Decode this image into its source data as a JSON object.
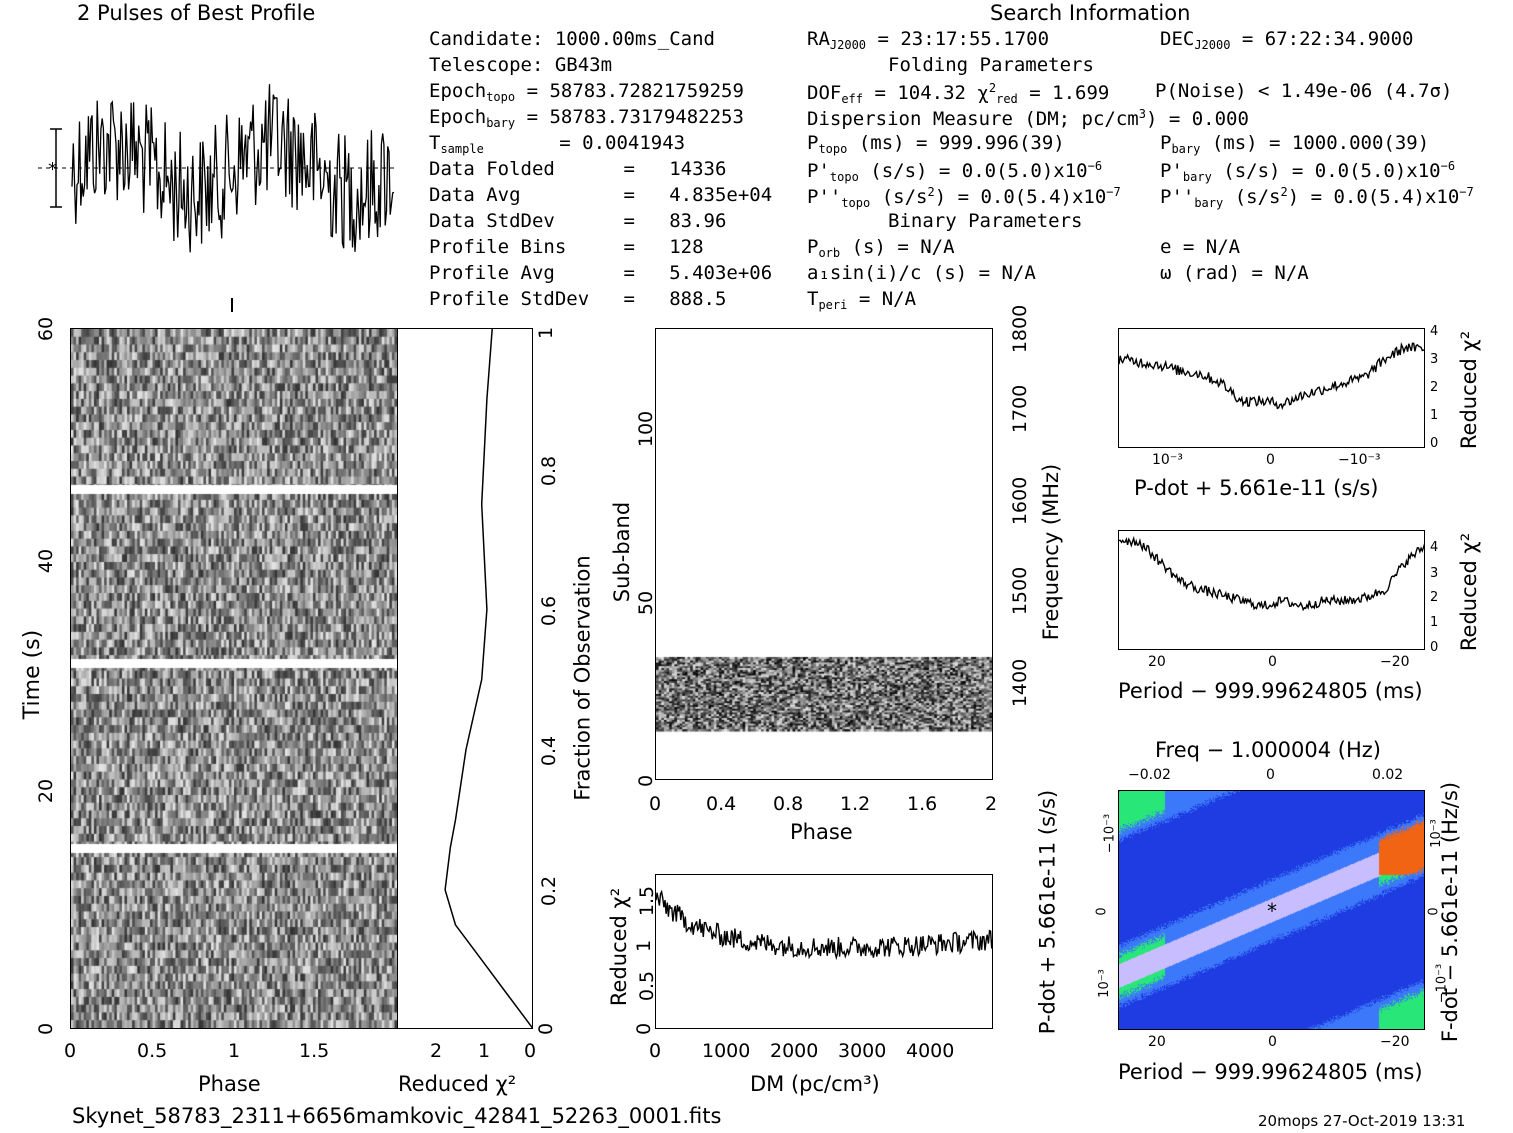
{
  "titles": {
    "profile_title": "2 Pulses of Best Profile",
    "search_title": "Search Information",
    "footer_file": "Skynet_58783_2311+6656mamkovic_42841_52263_0001.fits",
    "footer_stamp": "20mops 27-Oct-2019 13:31"
  },
  "search_info": {
    "candidate": "Candidate:  1000.00ms_Cand",
    "telescope": "Telescope:  GB43m",
    "epoch_topo_value": "= 58783.72821759259",
    "epoch_bary_value": "= 58783.73179482253",
    "tsample_value": "=   0.0041943",
    "data_folded": "Data Folded      =   14336",
    "data_avg": "Data Avg         =   4.835e+04",
    "data_stddev": "Data StdDev      =   83.96",
    "profile_bins": "Profile Bins     =   128",
    "profile_avg": "Profile Avg      =   5.403e+06",
    "profile_stddev": "Profile StdDev   =   888.5",
    "ra_value": "= 23:17:55.1700",
    "dec_value": "= 67:22:34.9000",
    "folding_header": "Folding Parameters",
    "dof_value": "= 104.32",
    "chi2_value": "= 1.699",
    "pnoise": "P(Noise) < 1.49e-06  (4.7σ)",
    "dm_line": "Dispersion Measure (DM; pc/cm",
    "dm_value": ") = 0.000",
    "ptopo_value": "(ms) =  999.996(39)",
    "pbary_value": "(ms) =  1000.000(39)",
    "pdtopo_value": "(s/s) = 0.0(5.0)x10",
    "pdbary_value": "(s/s) = 0.0(5.0)x10",
    "pdd_value": "(s/s",
    "pdd_rest_topo": ") = 0.0(5.4)x10",
    "pdd_rest_bary": ") = 0.0(5.4)x10",
    "binary_header": "Binary Parameters",
    "porb": "(s) = N/A",
    "e": "e = N/A",
    "a1sini": "a₁sin(i)/c (s) = N/A",
    "omega": "ω (rad) = N/A",
    "tperi": "= N/A"
  },
  "labels": {
    "time_axis": "Time (s)",
    "phase": "Phase",
    "reduced_chi2": "Reduced χ²",
    "fraction": "Fraction of Observation",
    "subband": "Sub-band",
    "frequency": "Frequency (MHz)",
    "dm_axis": "DM (pc/cm³)",
    "pdot_axis": "P-dot + 5.661e-11 (s/s)",
    "period_axis": "Period − 999.99624805 (ms)",
    "freq_axis": "Freq − 1.000004 (Hz)",
    "fdot_axis": "F-dot − 5.661e-11 (Hz/s)"
  },
  "ticks": {
    "time": [
      "0",
      "20",
      "40",
      "60"
    ],
    "phase": [
      "0",
      "0.5",
      "1",
      "1.5"
    ],
    "chi2_x": [
      "2",
      "1",
      "0"
    ],
    "fraction": [
      "0",
      "0.2",
      "0.4",
      "0.6",
      "0.8",
      "1"
    ],
    "subband": [
      "0",
      "50",
      "100"
    ],
    "phase2": [
      "0",
      "0.4",
      "0.8",
      "1.2",
      "1.6",
      "2"
    ],
    "freq": [
      "1400",
      "1500",
      "1600",
      "1700",
      "1800"
    ],
    "dm": [
      "0",
      "1000",
      "2000",
      "3000",
      "4000"
    ],
    "dmchi": [
      "0",
      "0.5",
      "1",
      "1.5"
    ],
    "pdotchi": [
      "0",
      "1",
      "2",
      "3",
      "4"
    ],
    "pdot_x": [
      "10⁻³",
      "0",
      "−10⁻³"
    ],
    "period_x": [
      "20",
      "0",
      "−20"
    ],
    "freq_top": [
      "−0.02",
      "0",
      "0.02"
    ],
    "pdot_left": [
      "−10⁻³",
      "0",
      "10⁻³"
    ],
    "fdot_right": [
      "10⁻³",
      "0",
      "−10⁻³"
    ]
  },
  "colors": {
    "accent_red": "#e8501a",
    "map_blue": "#1a3fe0",
    "map_green": "#20d080"
  },
  "chart_data": [
    {
      "type": "line",
      "title": "2 Pulses of Best Profile",
      "x": [
        0,
        0.25,
        0.5,
        0.75,
        1.0,
        1.25,
        1.5,
        1.75,
        2.0
      ],
      "series": [
        {
          "values": [
            0.1,
            -0.4,
            0.9,
            0.2,
            -0.6,
            0.5,
            1.0,
            -0.3,
            0.1
          ]
        }
      ]
    },
    {
      "type": "heatmap",
      "xlabel": "Phase",
      "ylabel": "Time (s)",
      "xlim": [
        0,
        2
      ],
      "ylim": [
        0,
        60
      ]
    },
    {
      "type": "line",
      "xlabel": "Reduced χ²",
      "ylabel": "Fraction of Observation",
      "x": [
        0,
        0.5,
        1.0,
        1.5,
        1.7,
        1.6,
        1.5,
        1.3,
        1.0,
        0.9,
        1.0,
        0.9,
        0.8
      ],
      "y": [
        0,
        0.05,
        0.1,
        0.15,
        0.2,
        0.26,
        0.3,
        0.4,
        0.5,
        0.6,
        0.75,
        0.9,
        1.0
      ]
    },
    {
      "type": "heatmap",
      "xlabel": "Phase",
      "ylabel": "Sub-band",
      "xlim": [
        0,
        2
      ],
      "ylim": [
        0,
        128
      ]
    },
    {
      "type": "line",
      "xlabel": "DM (pc/cm³)",
      "ylabel": "Reduced χ²",
      "x": [
        0,
        300,
        600,
        1000,
        1500,
        2000,
        2500,
        3000,
        3500,
        4000,
        4500,
        4900
      ],
      "series": [
        {
          "values": [
            1.5,
            1.55,
            1.3,
            1.15,
            1.05,
            0.95,
            1.05,
            1.0,
            1.05,
            1.05,
            1.05,
            1.15
          ]
        }
      ],
      "ylim": [
        0,
        1.8
      ]
    },
    {
      "type": "line",
      "xlabel": "P-dot + 5.661e-11 (s/s)",
      "ylabel": "Reduced χ²",
      "series": [
        {
          "values": [
            3.0,
            2.9,
            2.8,
            2.6,
            2.5,
            2.2,
            1.6,
            1.6,
            1.5,
            1.8,
            2.0,
            2.2,
            2.4,
            3.0,
            3.4,
            3.3
          ]
        }
      ],
      "ylim": [
        0,
        4
      ]
    },
    {
      "type": "line",
      "xlabel": "Period − 999.99624805 (ms)",
      "ylabel": "Reduced χ²",
      "series": [
        {
          "values": [
            4.0,
            3.9,
            3.2,
            2.5,
            2.2,
            2.0,
            1.8,
            1.6,
            1.8,
            1.6,
            1.8,
            1.8,
            1.9,
            2.2,
            3.2,
            3.8
          ]
        }
      ],
      "ylim": [
        0,
        4.3
      ]
    },
    {
      "type": "heatmap",
      "xlabel": "Period − 999.99624805 (ms)",
      "ylabel": "P-dot + 5.661e-11 (s/s)"
    }
  ]
}
